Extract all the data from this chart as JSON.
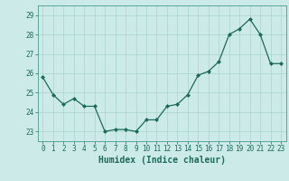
{
  "x": [
    0,
    1,
    2,
    3,
    4,
    5,
    6,
    7,
    8,
    9,
    10,
    11,
    12,
    13,
    14,
    15,
    16,
    17,
    18,
    19,
    20,
    21,
    22,
    23
  ],
  "y": [
    25.8,
    24.9,
    24.4,
    24.7,
    24.3,
    24.3,
    23.0,
    23.1,
    23.1,
    23.0,
    23.6,
    23.6,
    24.3,
    24.4,
    24.9,
    25.9,
    26.1,
    26.6,
    28.0,
    28.3,
    28.8,
    28.0,
    26.5,
    26.5
  ],
  "line_color": "#1a6b5a",
  "marker": "D",
  "markersize": 2.0,
  "linewidth": 0.9,
  "bg_color": "#cceae7",
  "grid_color": "#aad4d0",
  "xlabel": "Humidex (Indice chaleur)",
  "ylim": [
    22.5,
    29.5
  ],
  "xlim": [
    -0.5,
    23.5
  ],
  "yticks": [
    23,
    24,
    25,
    26,
    27,
    28,
    29
  ],
  "xticks": [
    0,
    1,
    2,
    3,
    4,
    5,
    6,
    7,
    8,
    9,
    10,
    11,
    12,
    13,
    14,
    15,
    16,
    17,
    18,
    19,
    20,
    21,
    22,
    23
  ],
  "xlabel_color": "#1a6b5a",
  "tick_color": "#1a6b5a",
  "spine_color": "#4a9a8a",
  "xlabel_fontsize": 7,
  "tick_fontsize": 5.5
}
